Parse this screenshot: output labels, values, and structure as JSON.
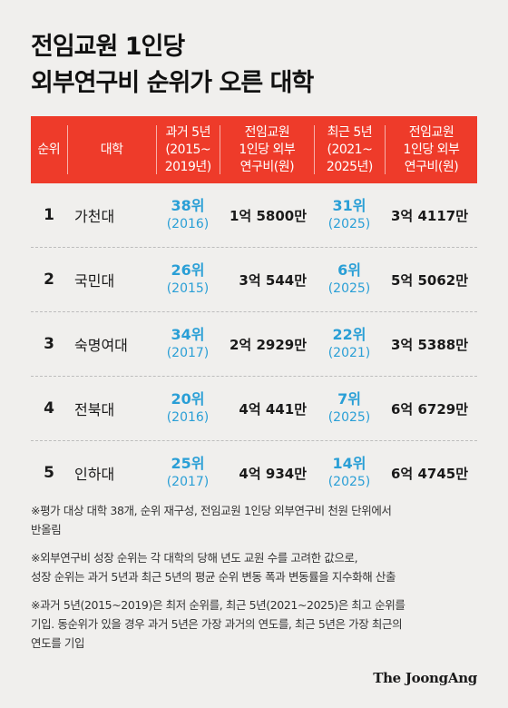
{
  "title": {
    "line1": "전임교원 1인당",
    "line2": "외부연구비 순위가 오른 대학"
  },
  "header": {
    "rank": "순위",
    "university": "대학",
    "past_rank": [
      "과거 5년",
      "(2015~",
      "2019년)"
    ],
    "past_amount": [
      "전임교원",
      "1인당 외부",
      "연구비(원)"
    ],
    "recent_rank": [
      "최근 5년",
      "(2021~",
      "2025년)"
    ],
    "recent_amount": [
      "전임교원",
      "1인당 외부",
      "연구비(원)"
    ]
  },
  "rows": [
    {
      "rank": "1",
      "university": "가천대",
      "past_rank": "38위",
      "past_year": "(2016)",
      "past_amount": "1억 5800만",
      "recent_rank": "31위",
      "recent_year": "(2025)",
      "recent_amount": "3억 4117만"
    },
    {
      "rank": "2",
      "university": "국민대",
      "past_rank": "26위",
      "past_year": "(2015)",
      "past_amount": "3억 544만",
      "recent_rank": "6위",
      "recent_year": "(2025)",
      "recent_amount": "5억 5062만"
    },
    {
      "rank": "3",
      "university": "숙명여대",
      "past_rank": "34위",
      "past_year": "(2017)",
      "past_amount": "2억 2929만",
      "recent_rank": "22위",
      "recent_year": "(2021)",
      "recent_amount": "3억 5388만"
    },
    {
      "rank": "4",
      "university": "전북대",
      "past_rank": "20위",
      "past_year": "(2016)",
      "past_amount": "4억 441만",
      "recent_rank": "7위",
      "recent_year": "(2025)",
      "recent_amount": "6억 6729만"
    },
    {
      "rank": "5",
      "university": "인하대",
      "past_rank": "25위",
      "past_year": "(2017)",
      "past_amount": "4억 934만",
      "recent_rank": "14위",
      "recent_year": "(2025)",
      "recent_amount": "6억 4745만"
    }
  ],
  "notes": [
    [
      "※평가 대상 대학 38개, 순위 재구성, 전임교원 1인당 외부연구비 천원 단위에서",
      "반올림"
    ],
    [
      "※외부연구비 성장 순위는 각 대학의 당해 년도 교원 수를 고려한 값으로,",
      "성장 순위는 과거 5년과 최근 5년의 평균 순위 변동 폭과 변동률을 지수화해 산출"
    ],
    [
      "※과거 5년(2015~2019)은 최저 순위를, 최근 5년(2021~2025)은 최고 순위를",
      "기입. 동순위가 있을 경우 과거 5년은 가장 과거의 연도를, 최근 5년은 가장 최근의",
      "연도를 기입"
    ]
  ],
  "logo": "The JoongAng",
  "colors": {
    "header_bg": "#ee3b2a",
    "rank_text": "#2a9fd6",
    "page_bg": "#f0efed"
  }
}
